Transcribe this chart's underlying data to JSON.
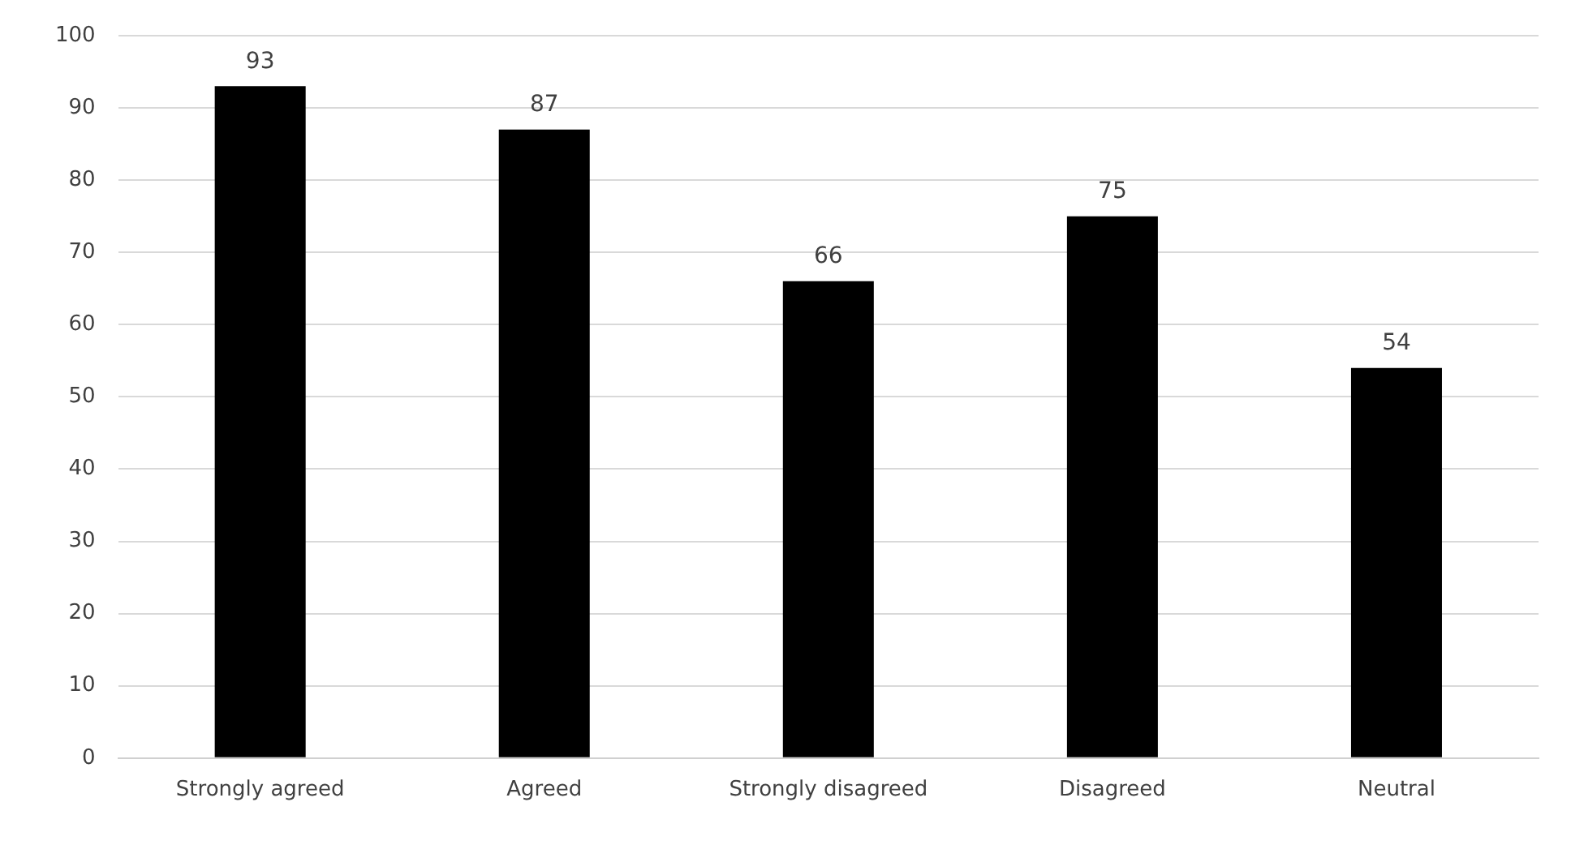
{
  "chart_data": {
    "type": "bar",
    "categories": [
      "Strongly agreed",
      "Agreed",
      "Strongly disagreed",
      "Disagreed",
      "Neutral"
    ],
    "values": [
      93,
      87,
      66,
      75,
      54
    ],
    "color": "#000000",
    "ylim": [
      0,
      100
    ],
    "yticks": [
      0,
      10,
      20,
      30,
      40,
      50,
      60,
      70,
      80,
      90,
      100
    ],
    "grid": "y",
    "data_labels": true,
    "legend": false
  }
}
